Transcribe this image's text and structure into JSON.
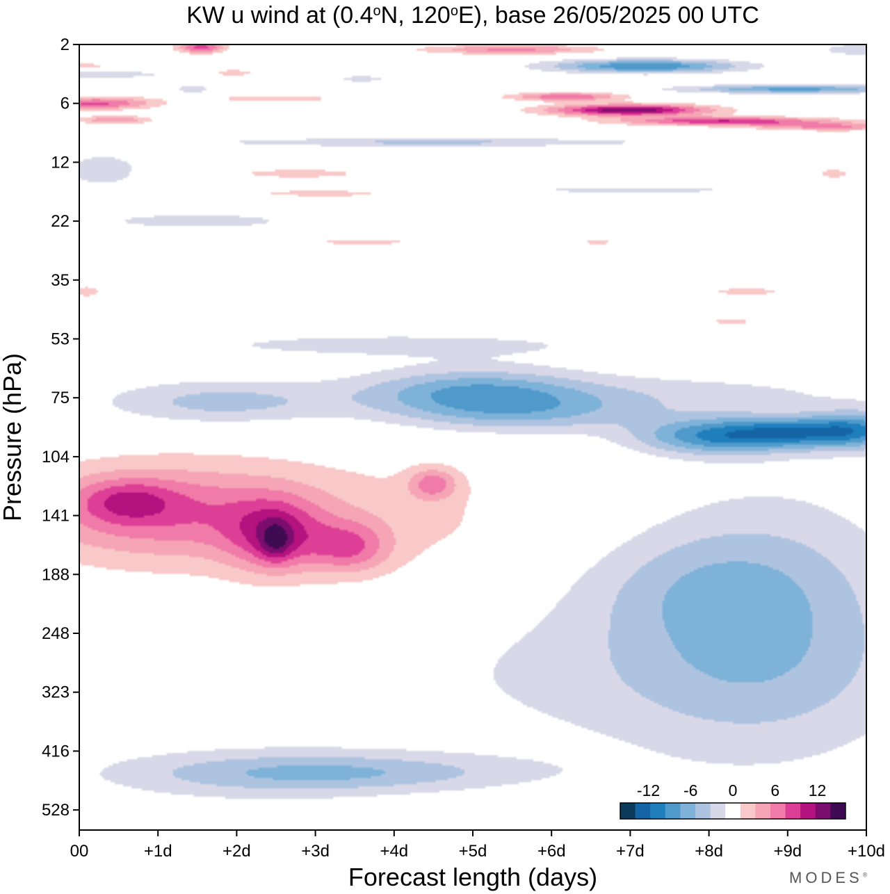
{
  "chart_data": {
    "type": "heatmap",
    "title": {
      "prefix": "KW u wind at (0.4",
      "lat_deg": "o",
      "middle": "N, 120",
      "lon_deg": "o",
      "suffix": "E),  base 26/05/2025  00 UTC"
    },
    "xlabel": "Forecast length (days)",
    "ylabel": "Pressure (hPa)",
    "x_ticks": [
      "00",
      "+1d",
      "+2d",
      "+3d",
      "+4d",
      "+5d",
      "+6d",
      "+7d",
      "+8d",
      "+9d",
      "+10d"
    ],
    "y_ticks": [
      "2",
      "6",
      "12",
      "22",
      "35",
      "53",
      "75",
      "104",
      "141",
      "188",
      "248",
      "323",
      "416",
      "528"
    ],
    "xlim": [
      0,
      10
    ],
    "colorbar": {
      "tick_labels": [
        "-12",
        "-6",
        "0",
        "6",
        "12"
      ],
      "tick_values": [
        -12,
        -6,
        0,
        6,
        12
      ],
      "levels": [
        -14,
        -12,
        -10,
        -8,
        -6,
        -4,
        -2,
        2,
        4,
        6,
        8,
        10,
        12,
        14
      ],
      "colors": [
        "#0b3a5b",
        "#1565a4",
        "#1f7fbd",
        "#4f9acb",
        "#7fb2d8",
        "#aec3df",
        "#d8d8e8",
        "#ffffff",
        "#f9c8c8",
        "#f5a5b5",
        "#f07aa8",
        "#de3f96",
        "#b3127f",
        "#7a0d6e",
        "#3e0a52"
      ]
    },
    "grid": false,
    "legend_position": "bottom-right",
    "field_blobs": [
      {
        "d": 0.0,
        "p": 3.0,
        "w": 0.5,
        "h": 0.18,
        "v": 2.8
      },
      {
        "d": 1.55,
        "p": 2.1,
        "w": 0.3,
        "h": 0.25,
        "v": 9.0
      },
      {
        "d": 1.95,
        "p": 3.4,
        "w": 0.35,
        "h": 0.25,
        "v": 3.0
      },
      {
        "d": 0.2,
        "p": 6.0,
        "w": 0.75,
        "h": 0.45,
        "v": 8.5
      },
      {
        "d": 0.45,
        "p": 7.3,
        "w": 0.45,
        "h": 0.35,
        "v": 6.0
      },
      {
        "d": 0.2,
        "p": 3.5,
        "w": 1.0,
        "h": 0.25,
        "v": -3.5
      },
      {
        "d": 1.45,
        "p": 4.6,
        "w": 0.2,
        "h": 0.15,
        "v": -4.0
      },
      {
        "d": 3.6,
        "p": 3.8,
        "w": 0.4,
        "h": 0.2,
        "v": -2.8
      },
      {
        "d": 2.5,
        "p": 5.5,
        "w": 1.0,
        "h": 0.15,
        "v": 3.0
      },
      {
        "d": 5.5,
        "p": 2.2,
        "w": 1.1,
        "h": 0.2,
        "v": 6.5
      },
      {
        "d": 6.2,
        "p": 5.3,
        "w": 0.7,
        "h": 0.4,
        "v": 8.0
      },
      {
        "d": 7.0,
        "p": 6.5,
        "w": 1.0,
        "h": 0.45,
        "v": 13.5
      },
      {
        "d": 8.2,
        "p": 7.4,
        "w": 1.3,
        "h": 0.3,
        "v": 10.0
      },
      {
        "d": 9.6,
        "p": 7.9,
        "w": 1.0,
        "h": 0.25,
        "v": 6.0
      },
      {
        "d": 7.2,
        "p": 3.0,
        "w": 1.2,
        "h": 0.4,
        "v": -10.0
      },
      {
        "d": 9.1,
        "p": 4.6,
        "w": 1.4,
        "h": 0.25,
        "v": -8.5
      },
      {
        "d": 9.95,
        "p": 2.2,
        "w": 0.5,
        "h": 0.25,
        "v": -4.0
      },
      {
        "d": 4.5,
        "p": 9.5,
        "w": 2.8,
        "h": 0.5,
        "v": -4.5
      },
      {
        "d": 0.3,
        "p": 13.0,
        "w": 0.5,
        "h": 2.5,
        "v": -3.5
      },
      {
        "d": 1.5,
        "p": 22.0,
        "w": 1.8,
        "h": 2.0,
        "v": -2.6
      },
      {
        "d": 2.8,
        "p": 13.5,
        "w": 1.2,
        "h": 1.0,
        "v": 2.6
      },
      {
        "d": 3.2,
        "p": 16.5,
        "w": 1.5,
        "h": 1.0,
        "v": 2.8
      },
      {
        "d": 3.6,
        "p": 26.0,
        "w": 1.2,
        "h": 1.0,
        "v": 2.4
      },
      {
        "d": 7.0,
        "p": 16.0,
        "w": 3.0,
        "h": 1.0,
        "v": -2.3
      },
      {
        "d": 9.6,
        "p": 13.5,
        "w": 0.3,
        "h": 1.0,
        "v": 2.6
      },
      {
        "d": 6.6,
        "p": 26.0,
        "w": 0.35,
        "h": 1.0,
        "v": 2.4
      },
      {
        "d": 8.5,
        "p": 38.0,
        "w": 0.7,
        "h": 1.5,
        "v": 2.6
      },
      {
        "d": 8.3,
        "p": 47.0,
        "w": 0.6,
        "h": 1.5,
        "v": 2.4
      },
      {
        "d": 0.1,
        "p": 38.0,
        "w": 0.3,
        "h": 2.5,
        "v": 2.5
      },
      {
        "d": 4.0,
        "p": 55.0,
        "w": 3.5,
        "h": 5.0,
        "v": -2.6
      },
      {
        "d": 1.8,
        "p": 77.0,
        "w": 1.5,
        "h": 10.0,
        "v": -4.8
      },
      {
        "d": 5.0,
        "p": 72.0,
        "w": 1.4,
        "h": 10.0,
        "v": -6.5
      },
      {
        "d": 5.6,
        "p": 82.0,
        "w": 1.6,
        "h": 10.0,
        "v": -5.0
      },
      {
        "d": 8.1,
        "p": 93.0,
        "w": 1.0,
        "h": 10.0,
        "v": -9.2
      },
      {
        "d": 9.1,
        "p": 91.0,
        "w": 0.8,
        "h": 8.0,
        "v": -7.8
      },
      {
        "d": 9.9,
        "p": 90.0,
        "w": 0.6,
        "h": 10.0,
        "v": -8.0
      },
      {
        "d": 7.3,
        "p": 74.0,
        "w": 3.0,
        "h": 10.0,
        "v": -2.6
      },
      {
        "d": 1.0,
        "p": 138.0,
        "w": 1.8,
        "h": 35.0,
        "v": 6.0
      },
      {
        "d": 0.6,
        "p": 131.0,
        "w": 0.6,
        "h": 15.0,
        "v": 4.5
      },
      {
        "d": 2.5,
        "p": 156.0,
        "w": 0.6,
        "h": 30.0,
        "v": 7.0
      },
      {
        "d": 2.5,
        "p": 160.0,
        "w": 0.2,
        "h": 16.0,
        "v": 4.5
      },
      {
        "d": 3.45,
        "p": 165.0,
        "w": 0.5,
        "h": 22.0,
        "v": 6.0
      },
      {
        "d": 4.5,
        "p": 120.0,
        "w": 0.3,
        "h": 10.0,
        "v": 6.0
      },
      {
        "d": 3.0,
        "p": 145.0,
        "w": 3.5,
        "h": 55.0,
        "v": 2.7
      },
      {
        "d": 8.7,
        "p": 235.0,
        "w": 1.8,
        "h": 180.0,
        "v": -5.0
      },
      {
        "d": 7.8,
        "p": 195.0,
        "w": 1.6,
        "h": 60.0,
        "v": -2.6
      },
      {
        "d": 7.0,
        "p": 300.0,
        "w": 3.5,
        "h": 120.0,
        "v": -2.4
      },
      {
        "d": 3.4,
        "p": 455.0,
        "w": 2.4,
        "h": 35.0,
        "v": -4.6
      },
      {
        "d": 2.2,
        "p": 460.0,
        "w": 2.2,
        "h": 65.0,
        "v": -2.5
      }
    ]
  },
  "brand": {
    "text": "MODES",
    "mark": "®"
  }
}
